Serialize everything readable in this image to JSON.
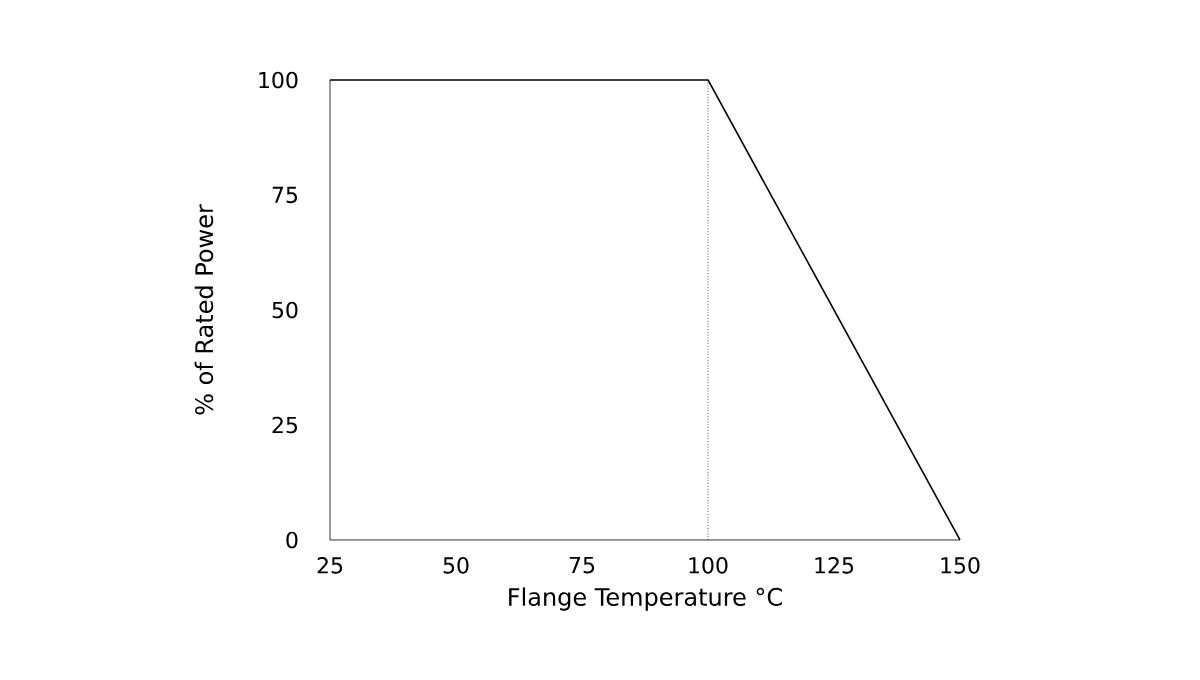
{
  "chart_data": {
    "type": "line",
    "xlabel": "Flange Temperature °C",
    "ylabel": "% of Rated Power",
    "x": [
      25,
      100,
      150
    ],
    "series": [
      {
        "color": "#000000",
        "values": [
          100,
          100,
          0
        ]
      }
    ],
    "xlim": [
      25,
      150
    ],
    "xticks": [
      25,
      50,
      75,
      100,
      125,
      150
    ],
    "ylim": [
      0,
      100
    ],
    "yticks": [
      0,
      25,
      50,
      75,
      100
    ],
    "ref_lines": [
      {
        "axis": "x",
        "value": 100,
        "color": "#000000",
        "line_style": "dotted"
      }
    ],
    "marker": "none",
    "line_style": "solid"
  }
}
